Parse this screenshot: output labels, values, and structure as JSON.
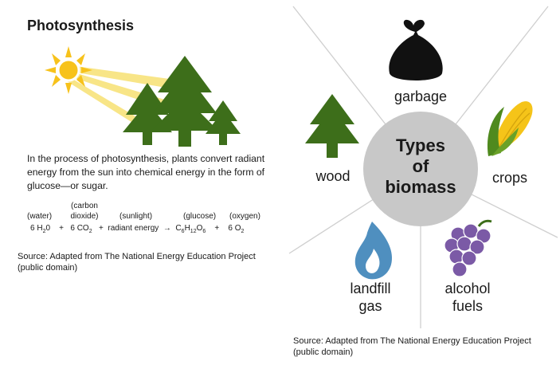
{
  "photosynthesis": {
    "title": "Photosynthesis",
    "description": "In the process of photosynthesis, plants convert radiant energy from the sun into chemical energy in the form of glucose—or sugar.",
    "equation": {
      "labels": [
        "(water)",
        "(carbon dioxide)",
        "(sunlight)",
        "(glucose)",
        "(oxygen)"
      ],
      "label_carbon_line1": "(carbon",
      "label_carbon_line2": "dioxide)",
      "water_coef": "6",
      "water_h": "H",
      "water_sub": "2",
      "water_o": "0",
      "co2_coef": "6",
      "co2_c": "CO",
      "co2_sub": "2",
      "energy": "radiant energy",
      "glucose_c": "C",
      "glucose_c_sub": "6",
      "glucose_h": "H",
      "glucose_h_sub": "12",
      "glucose_o": "O",
      "glucose_o_sub": "6",
      "o2_coef": "6",
      "o2_o": "O",
      "o2_sub": "2",
      "plus": "+",
      "arrow": "→"
    },
    "source": "Source: Adapted from The National Energy Education Project (public domain)"
  },
  "biomass": {
    "center_line1": "Types",
    "center_line2": "of",
    "center_line3": "biomass",
    "garbage": "garbage",
    "wood": "wood",
    "crops": "crops",
    "landfill_line1": "landfill",
    "landfill_line2": "gas",
    "alcohol_line1": "alcohol",
    "alcohol_line2": "fuels",
    "source": "Source: Adapted from The National Energy Education Project (public domain)"
  },
  "colors": {
    "tree_green": "#3d6e1a",
    "sun_yellow": "#f7c21b",
    "center_gray": "#c8c8c8",
    "grape_purple": "#7b5aa6",
    "flame_blue": "#4f8fbf"
  }
}
